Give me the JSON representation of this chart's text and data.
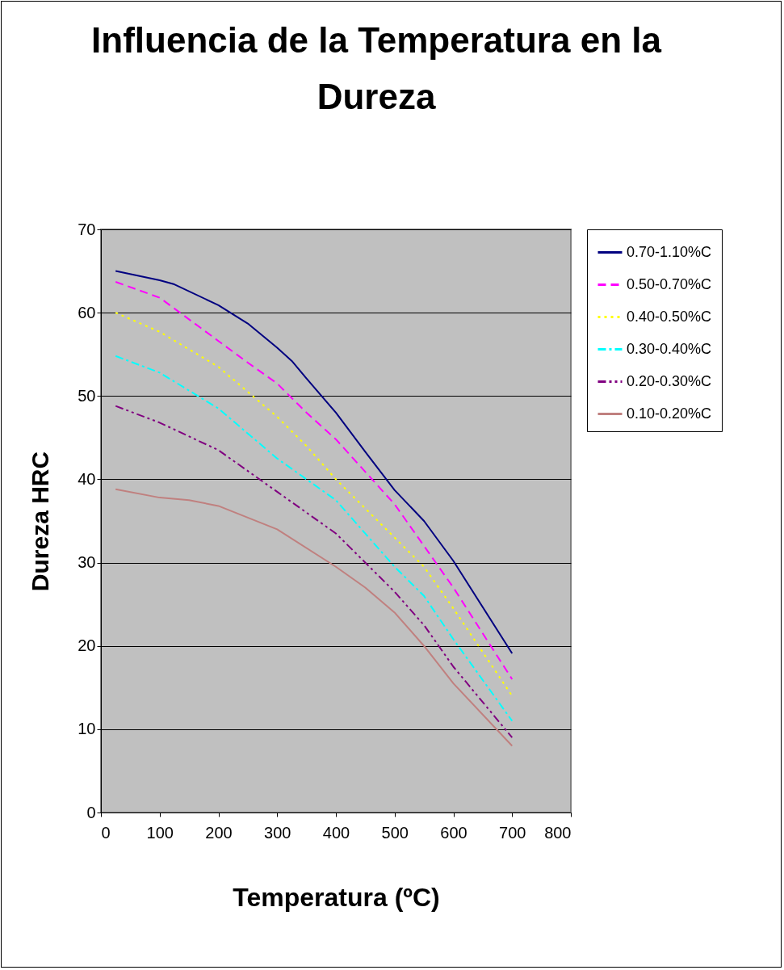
{
  "chart_data": {
    "type": "line",
    "title": "Influencia de la Temperatura en la Dureza",
    "xlabel": "Temperatura (ºC)",
    "ylabel": "Dureza HRC",
    "xlim": [
      0,
      800
    ],
    "xticks": [
      0,
      100,
      200,
      300,
      400,
      500,
      600,
      700,
      800
    ],
    "ylim": [
      0,
      70
    ],
    "yticks": [
      0,
      10,
      20,
      30,
      40,
      50,
      60,
      70
    ],
    "grid": "y",
    "legend": "right",
    "marker": "none",
    "series": [
      {
        "name": "0.70-1.10%C",
        "color": "#000080",
        "line_style": "solid",
        "x": [
          25,
          100,
          125,
          200,
          250,
          300,
          325,
          350,
          400,
          450,
          500,
          550,
          600,
          700
        ],
        "values": [
          65,
          63.9,
          63.4,
          60.9,
          58.7,
          55.8,
          54.2,
          52.1,
          48,
          43.3,
          38.7,
          35,
          30.2,
          19.1
        ]
      },
      {
        "name": "0.50-0.70%C",
        "color": "#ff00ff",
        "line_style": "dashed",
        "x": [
          25,
          100,
          200,
          250,
          300,
          350,
          400,
          500,
          550,
          600,
          700
        ],
        "values": [
          63.7,
          61.8,
          56.6,
          54,
          51.5,
          48,
          44.8,
          37,
          32,
          27,
          16
        ]
      },
      {
        "name": "0.40-0.50%C",
        "color": "#ffff00",
        "line_style": "dotted",
        "x": [
          25,
          100,
          200,
          300,
          350,
          400,
          500,
          550,
          600,
          700
        ],
        "values": [
          60,
          57.7,
          53.5,
          47.5,
          44,
          40,
          33,
          29.5,
          24.5,
          14
        ]
      },
      {
        "name": "0.30-0.40%C",
        "color": "#00ffff",
        "line_style": "dashdot",
        "x": [
          25,
          100,
          200,
          250,
          300,
          400,
          500,
          550,
          600,
          700
        ],
        "values": [
          54.8,
          52.8,
          48.5,
          45.5,
          42.5,
          37.5,
          29.5,
          26,
          20.8,
          11
        ]
      },
      {
        "name": "0.20-0.30%C",
        "color": "#800080",
        "line_style": "dashdotdot",
        "x": [
          25,
          100,
          200,
          300,
          400,
          500,
          550,
          600,
          700
        ],
        "values": [
          48.8,
          46.8,
          43.5,
          38.5,
          33.5,
          26.5,
          22.5,
          17.5,
          9
        ]
      },
      {
        "name": "0.10-0.20%C",
        "color": "#c0807f",
        "line_style": "solid",
        "x": [
          25,
          100,
          150,
          200,
          300,
          400,
          450,
          500,
          550,
          600,
          700
        ],
        "values": [
          38.8,
          37.8,
          37.5,
          36.8,
          34,
          29.5,
          27,
          24,
          20,
          15.5,
          8
        ]
      }
    ]
  }
}
